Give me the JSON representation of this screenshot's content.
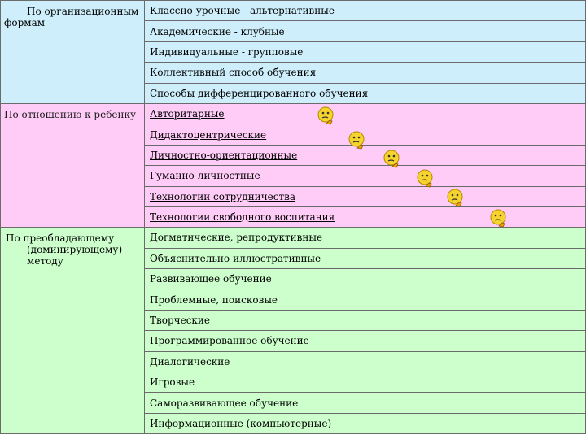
{
  "groups": [
    {
      "category": "По организационным формам",
      "items": [
        "Классно-урочные - альтернативные",
        "Академические - клубные",
        "Индивидуальные - групповые",
        "Коллективный способ обучения",
        "Способы дифференцированного обучения"
      ]
    },
    {
      "category": "По отношению к ребенку",
      "items": [
        "Авторитарные",
        "Дидактоцентрические",
        "Личностно-ориентационные",
        "Гуманно-личностные",
        "Технологии сотрудничества",
        "Технологии свободного воспитания"
      ]
    },
    {
      "category_line1": "По преобладающему",
      "category_line2": "(доминирующему)",
      "category_line3": "методу",
      "items": [
        "Догматические, репродуктивные",
        "Объяснительно-иллюстративные",
        "Развивающее обучение",
        "Проблемные, поисковые",
        "Творческие",
        "Программированное обучение",
        "Диалогические",
        "Игровые",
        "Саморазвивающее обучение",
        "Информационные (компьютерные)"
      ]
    }
  ],
  "colors": {
    "group1": "#cdeefa",
    "group2": "#ffccf7",
    "group3": "#ccffcc"
  },
  "icon": "thinking-face-icon"
}
